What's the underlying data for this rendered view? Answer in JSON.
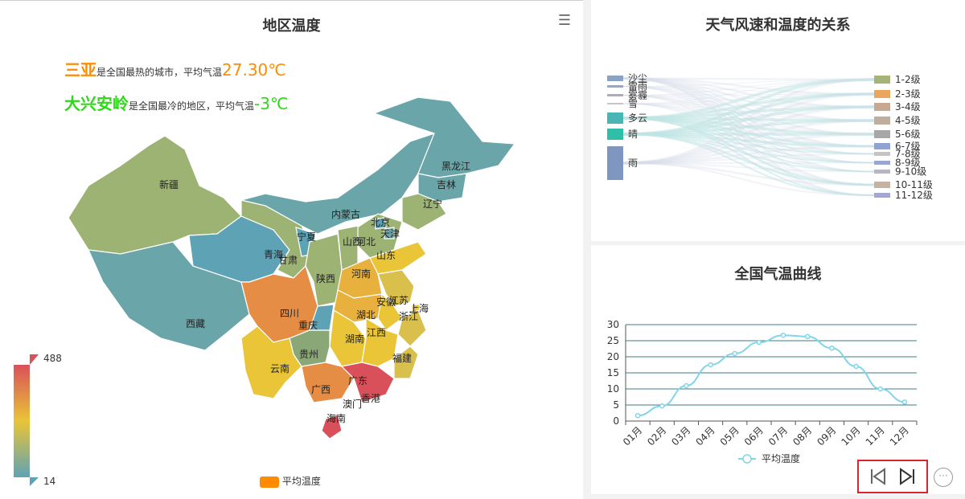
{
  "left_panel": {
    "title": "地区温度",
    "hot_city": "三亚",
    "hot_text": "是全国最热的城市，平均气温",
    "hot_value": "27.30℃",
    "cold_region": "大兴安岭",
    "cold_text": "是全国最冷的地区，平均气温",
    "cold_value": "-3℃",
    "visual_map": {
      "max_label": "488",
      "min_label": "14"
    },
    "legend_label": "平均温度",
    "colors": {
      "hot": "#ff8c00",
      "cold": "#2fd81a",
      "low": "#5ea3b5",
      "mid": "#e9c537",
      "high": "#d9505a"
    }
  },
  "map_labels": [
    "新疆",
    "西藏",
    "青海",
    "甘肃",
    "宁夏",
    "内蒙古",
    "黑龙江",
    "吉林",
    "辽宁",
    "北京",
    "天津",
    "河北",
    "山西",
    "山东",
    "河南",
    "陕西",
    "四川",
    "重庆",
    "湖北",
    "安徽",
    "江苏",
    "上海",
    "浙江",
    "江西",
    "湖南",
    "贵州",
    "云南",
    "广西",
    "广东",
    "福建",
    "澳门",
    "香港",
    "海南"
  ],
  "sankey": {
    "title": "天气风速和温度的关系",
    "sources": [
      "沙尘",
      "雷雨",
      "雾霾",
      "雪",
      "多云",
      "晴",
      "雨"
    ],
    "targets": [
      "1-2级",
      "2-3级",
      "3-4级",
      "4-5级",
      "5-6级",
      "6-7级",
      "7-8级",
      "8-9级",
      "9-10级",
      "10-11级",
      "11-12级"
    ]
  },
  "chart_data": {
    "type": "line",
    "title": "全国气温曲线",
    "categories": [
      "01月",
      "02月",
      "03月",
      "04月",
      "05月",
      "06月",
      "07月",
      "08月",
      "09月",
      "10月",
      "11月",
      "12月"
    ],
    "series": [
      {
        "name": "平均温度",
        "values": [
          1.7,
          4.7,
          11,
          17.5,
          21,
          24.5,
          26.7,
          26.3,
          22.7,
          17,
          10,
          5.9
        ]
      }
    ],
    "ylim": [
      0,
      30
    ],
    "yticks": [
      "0",
      "5",
      "10",
      "15",
      "20",
      "25",
      "30"
    ],
    "grid": true,
    "legend_placement": "bottom",
    "color": "#7fd6e8"
  }
}
